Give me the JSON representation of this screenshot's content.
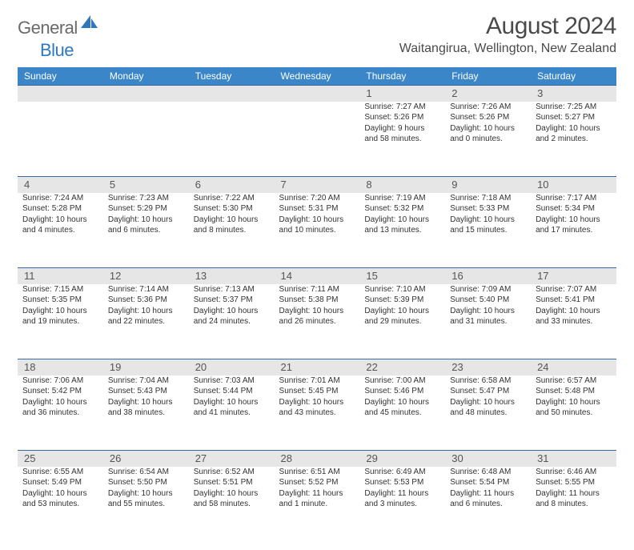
{
  "logo": {
    "general": "General",
    "blue": "Blue"
  },
  "title": "August 2024",
  "location": "Waitangirua, Wellington, New Zealand",
  "colors": {
    "header_bg": "#3a86c8",
    "header_text": "#ffffff",
    "daynum_bg": "#e6e6e6",
    "week_border": "#3a6a9a",
    "logo_gray": "#6a6a6a",
    "logo_blue": "#2f78bf"
  },
  "day_headers": [
    "Sunday",
    "Monday",
    "Tuesday",
    "Wednesday",
    "Thursday",
    "Friday",
    "Saturday"
  ],
  "weeks": [
    [
      {
        "num": "",
        "sunrise": "",
        "sunset": "",
        "dl1": "",
        "dl2": ""
      },
      {
        "num": "",
        "sunrise": "",
        "sunset": "",
        "dl1": "",
        "dl2": ""
      },
      {
        "num": "",
        "sunrise": "",
        "sunset": "",
        "dl1": "",
        "dl2": ""
      },
      {
        "num": "",
        "sunrise": "",
        "sunset": "",
        "dl1": "",
        "dl2": ""
      },
      {
        "num": "1",
        "sunrise": "Sunrise: 7:27 AM",
        "sunset": "Sunset: 5:26 PM",
        "dl1": "Daylight: 9 hours",
        "dl2": "and 58 minutes."
      },
      {
        "num": "2",
        "sunrise": "Sunrise: 7:26 AM",
        "sunset": "Sunset: 5:26 PM",
        "dl1": "Daylight: 10 hours",
        "dl2": "and 0 minutes."
      },
      {
        "num": "3",
        "sunrise": "Sunrise: 7:25 AM",
        "sunset": "Sunset: 5:27 PM",
        "dl1": "Daylight: 10 hours",
        "dl2": "and 2 minutes."
      }
    ],
    [
      {
        "num": "4",
        "sunrise": "Sunrise: 7:24 AM",
        "sunset": "Sunset: 5:28 PM",
        "dl1": "Daylight: 10 hours",
        "dl2": "and 4 minutes."
      },
      {
        "num": "5",
        "sunrise": "Sunrise: 7:23 AM",
        "sunset": "Sunset: 5:29 PM",
        "dl1": "Daylight: 10 hours",
        "dl2": "and 6 minutes."
      },
      {
        "num": "6",
        "sunrise": "Sunrise: 7:22 AM",
        "sunset": "Sunset: 5:30 PM",
        "dl1": "Daylight: 10 hours",
        "dl2": "and 8 minutes."
      },
      {
        "num": "7",
        "sunrise": "Sunrise: 7:20 AM",
        "sunset": "Sunset: 5:31 PM",
        "dl1": "Daylight: 10 hours",
        "dl2": "and 10 minutes."
      },
      {
        "num": "8",
        "sunrise": "Sunrise: 7:19 AM",
        "sunset": "Sunset: 5:32 PM",
        "dl1": "Daylight: 10 hours",
        "dl2": "and 13 minutes."
      },
      {
        "num": "9",
        "sunrise": "Sunrise: 7:18 AM",
        "sunset": "Sunset: 5:33 PM",
        "dl1": "Daylight: 10 hours",
        "dl2": "and 15 minutes."
      },
      {
        "num": "10",
        "sunrise": "Sunrise: 7:17 AM",
        "sunset": "Sunset: 5:34 PM",
        "dl1": "Daylight: 10 hours",
        "dl2": "and 17 minutes."
      }
    ],
    [
      {
        "num": "11",
        "sunrise": "Sunrise: 7:15 AM",
        "sunset": "Sunset: 5:35 PM",
        "dl1": "Daylight: 10 hours",
        "dl2": "and 19 minutes."
      },
      {
        "num": "12",
        "sunrise": "Sunrise: 7:14 AM",
        "sunset": "Sunset: 5:36 PM",
        "dl1": "Daylight: 10 hours",
        "dl2": "and 22 minutes."
      },
      {
        "num": "13",
        "sunrise": "Sunrise: 7:13 AM",
        "sunset": "Sunset: 5:37 PM",
        "dl1": "Daylight: 10 hours",
        "dl2": "and 24 minutes."
      },
      {
        "num": "14",
        "sunrise": "Sunrise: 7:11 AM",
        "sunset": "Sunset: 5:38 PM",
        "dl1": "Daylight: 10 hours",
        "dl2": "and 26 minutes."
      },
      {
        "num": "15",
        "sunrise": "Sunrise: 7:10 AM",
        "sunset": "Sunset: 5:39 PM",
        "dl1": "Daylight: 10 hours",
        "dl2": "and 29 minutes."
      },
      {
        "num": "16",
        "sunrise": "Sunrise: 7:09 AM",
        "sunset": "Sunset: 5:40 PM",
        "dl1": "Daylight: 10 hours",
        "dl2": "and 31 minutes."
      },
      {
        "num": "17",
        "sunrise": "Sunrise: 7:07 AM",
        "sunset": "Sunset: 5:41 PM",
        "dl1": "Daylight: 10 hours",
        "dl2": "and 33 minutes."
      }
    ],
    [
      {
        "num": "18",
        "sunrise": "Sunrise: 7:06 AM",
        "sunset": "Sunset: 5:42 PM",
        "dl1": "Daylight: 10 hours",
        "dl2": "and 36 minutes."
      },
      {
        "num": "19",
        "sunrise": "Sunrise: 7:04 AM",
        "sunset": "Sunset: 5:43 PM",
        "dl1": "Daylight: 10 hours",
        "dl2": "and 38 minutes."
      },
      {
        "num": "20",
        "sunrise": "Sunrise: 7:03 AM",
        "sunset": "Sunset: 5:44 PM",
        "dl1": "Daylight: 10 hours",
        "dl2": "and 41 minutes."
      },
      {
        "num": "21",
        "sunrise": "Sunrise: 7:01 AM",
        "sunset": "Sunset: 5:45 PM",
        "dl1": "Daylight: 10 hours",
        "dl2": "and 43 minutes."
      },
      {
        "num": "22",
        "sunrise": "Sunrise: 7:00 AM",
        "sunset": "Sunset: 5:46 PM",
        "dl1": "Daylight: 10 hours",
        "dl2": "and 45 minutes."
      },
      {
        "num": "23",
        "sunrise": "Sunrise: 6:58 AM",
        "sunset": "Sunset: 5:47 PM",
        "dl1": "Daylight: 10 hours",
        "dl2": "and 48 minutes."
      },
      {
        "num": "24",
        "sunrise": "Sunrise: 6:57 AM",
        "sunset": "Sunset: 5:48 PM",
        "dl1": "Daylight: 10 hours",
        "dl2": "and 50 minutes."
      }
    ],
    [
      {
        "num": "25",
        "sunrise": "Sunrise: 6:55 AM",
        "sunset": "Sunset: 5:49 PM",
        "dl1": "Daylight: 10 hours",
        "dl2": "and 53 minutes."
      },
      {
        "num": "26",
        "sunrise": "Sunrise: 6:54 AM",
        "sunset": "Sunset: 5:50 PM",
        "dl1": "Daylight: 10 hours",
        "dl2": "and 55 minutes."
      },
      {
        "num": "27",
        "sunrise": "Sunrise: 6:52 AM",
        "sunset": "Sunset: 5:51 PM",
        "dl1": "Daylight: 10 hours",
        "dl2": "and 58 minutes."
      },
      {
        "num": "28",
        "sunrise": "Sunrise: 6:51 AM",
        "sunset": "Sunset: 5:52 PM",
        "dl1": "Daylight: 11 hours",
        "dl2": "and 1 minute."
      },
      {
        "num": "29",
        "sunrise": "Sunrise: 6:49 AM",
        "sunset": "Sunset: 5:53 PM",
        "dl1": "Daylight: 11 hours",
        "dl2": "and 3 minutes."
      },
      {
        "num": "30",
        "sunrise": "Sunrise: 6:48 AM",
        "sunset": "Sunset: 5:54 PM",
        "dl1": "Daylight: 11 hours",
        "dl2": "and 6 minutes."
      },
      {
        "num": "31",
        "sunrise": "Sunrise: 6:46 AM",
        "sunset": "Sunset: 5:55 PM",
        "dl1": "Daylight: 11 hours",
        "dl2": "and 8 minutes."
      }
    ]
  ]
}
